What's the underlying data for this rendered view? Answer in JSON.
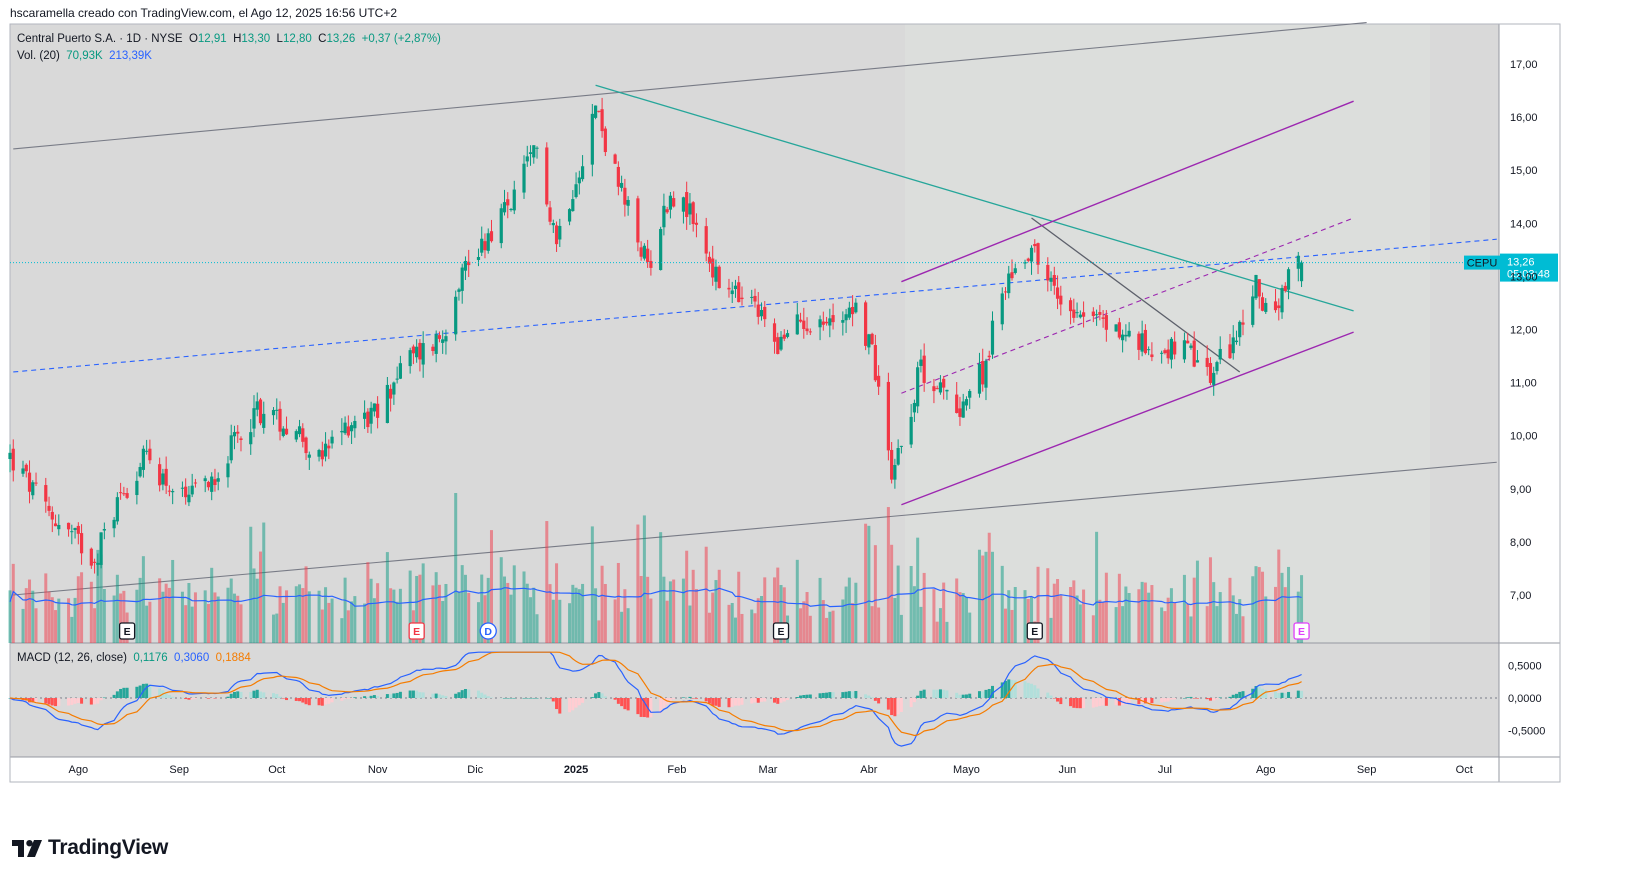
{
  "header": {
    "credit": "hscaramella creado con TradingView.com, el Ago 12, 2025 16:56 UTC+2"
  },
  "legend": {
    "symbol": "Central Puerto S.A. · 1D · NYSE",
    "open_label": "O",
    "open": "12,91",
    "high_label": "H",
    "high": "13,30",
    "low_label": "L",
    "low": "12,80",
    "close_label": "C",
    "close": "13,26",
    "change": "+0,37 (+2,87%)",
    "vol_label": "Vol. (20)",
    "vol_value": "70,93K",
    "vol_ma": "213,39K",
    "macd_label": "MACD (12, 26, close)",
    "macd_hist": "0,1176",
    "macd_line": "0,3060",
    "macd_signal": "0,1884"
  },
  "price_tag": {
    "ticker": "CEPU",
    "price": "13,26",
    "countdown": "05:03:48"
  },
  "brand": {
    "name": "TradingView"
  },
  "colors": {
    "up": "#089981",
    "down": "#f23645",
    "background": "#d8d8d8",
    "macd_line": "#2962ff",
    "signal_line": "#f57c00",
    "channel": "#9c27b0",
    "trendline_teal": "#26a69a",
    "tag_bg": "#00bcd4"
  },
  "chart_data": {
    "type": "candlestick",
    "x_labels": [
      "Ago",
      "Sep",
      "Oct",
      "Nov",
      "Dic",
      "2025",
      "Feb",
      "Mar",
      "Abr",
      "Mayo",
      "Jun",
      "Jul",
      "Ago",
      "Sep",
      "Oct"
    ],
    "price_axis": {
      "ticks": [
        "17,00",
        "16,00",
        "15,00",
        "14,00",
        "13,00",
        "12,00",
        "11,00",
        "10,00",
        "9,00",
        "8,00",
        "7,00"
      ],
      "range": [
        6.2,
        17.6
      ]
    },
    "macd_axis": {
      "ticks": [
        "0,5000",
        "0,0000",
        "-0,5000"
      ],
      "range": [
        -0.85,
        0.7
      ]
    },
    "close_path": [
      {
        "d": "2024-07-11",
        "c": 9.6
      },
      {
        "d": "2024-07-22",
        "c": 8.6
      },
      {
        "d": "2024-08-01",
        "c": 8.0
      },
      {
        "d": "2024-08-06",
        "c": 7.7
      },
      {
        "d": "2024-08-14",
        "c": 8.9
      },
      {
        "d": "2024-08-22",
        "c": 9.6
      },
      {
        "d": "2024-09-03",
        "c": 8.7
      },
      {
        "d": "2024-09-12",
        "c": 9.3
      },
      {
        "d": "2024-09-25",
        "c": 10.5
      },
      {
        "d": "2024-10-08",
        "c": 10.1
      },
      {
        "d": "2024-10-14",
        "c": 9.5
      },
      {
        "d": "2024-10-24",
        "c": 10.3
      },
      {
        "d": "2024-11-01",
        "c": 10.4
      },
      {
        "d": "2024-11-08",
        "c": 11.3
      },
      {
        "d": "2024-11-21",
        "c": 11.9
      },
      {
        "d": "2024-11-26",
        "c": 13.0
      },
      {
        "d": "2024-12-05",
        "c": 13.8
      },
      {
        "d": "2024-12-12",
        "c": 14.4
      },
      {
        "d": "2024-12-20",
        "c": 15.4
      },
      {
        "d": "2024-12-26",
        "c": 13.7
      },
      {
        "d": "2025-01-03",
        "c": 15.3
      },
      {
        "d": "2025-01-07",
        "c": 16.2
      },
      {
        "d": "2025-01-14",
        "c": 14.7
      },
      {
        "d": "2025-01-23",
        "c": 13.2
      },
      {
        "d": "2025-01-30",
        "c": 14.6
      },
      {
        "d": "2025-02-06",
        "c": 14.1
      },
      {
        "d": "2025-02-14",
        "c": 12.8
      },
      {
        "d": "2025-02-25",
        "c": 12.4
      },
      {
        "d": "2025-03-05",
        "c": 11.7
      },
      {
        "d": "2025-03-11",
        "c": 12.2
      },
      {
        "d": "2025-03-20",
        "c": 12.1
      },
      {
        "d": "2025-03-27",
        "c": 12.5
      },
      {
        "d": "2025-04-02",
        "c": 11.6
      },
      {
        "d": "2025-04-08",
        "c": 9.4
      },
      {
        "d": "2025-04-11",
        "c": 9.9
      },
      {
        "d": "2025-04-17",
        "c": 11.3
      },
      {
        "d": "2025-04-28",
        "c": 10.5
      },
      {
        "d": "2025-05-06",
        "c": 11.2
      },
      {
        "d": "2025-05-13",
        "c": 12.9
      },
      {
        "d": "2025-05-21",
        "c": 13.6
      },
      {
        "d": "2025-05-29",
        "c": 12.6
      },
      {
        "d": "2025-06-05",
        "c": 12.4
      },
      {
        "d": "2025-06-13",
        "c": 12.1
      },
      {
        "d": "2025-06-24",
        "c": 11.7
      },
      {
        "d": "2025-07-07",
        "c": 11.6
      },
      {
        "d": "2025-07-15",
        "c": 11.1
      },
      {
        "d": "2025-07-24",
        "c": 12.0
      },
      {
        "d": "2025-07-29",
        "c": 12.8
      },
      {
        "d": "2025-08-04",
        "c": 12.2
      },
      {
        "d": "2025-08-08",
        "c": 12.9
      },
      {
        "d": "2025-08-12",
        "c": 13.26
      }
    ],
    "last_candle": {
      "d": "2025-08-12",
      "o": 12.91,
      "h": 13.3,
      "l": 12.8,
      "c": 13.26
    },
    "volume_last": "70,93K",
    "volume_ma": "213,39K",
    "macd_last": {
      "hist": 0.1176,
      "macd": 0.306,
      "signal": 0.1884
    },
    "earnings_markers": [
      {
        "d": "2024-08-16",
        "label": "E"
      },
      {
        "d": "2024-11-13",
        "label": "E"
      },
      {
        "d": "2024-12-05",
        "label": "D"
      },
      {
        "d": "2025-03-05",
        "label": "E"
      },
      {
        "d": "2025-05-22",
        "label": "E"
      },
      {
        "d": "2025-08-12",
        "label": "E"
      }
    ],
    "drawings": [
      {
        "kind": "channel-line",
        "from": {
          "d": "2024-07-12",
          "p": 15.4
        },
        "to": {
          "d": "2025-09-01",
          "p": 17.78
        }
      },
      {
        "kind": "channel-line",
        "from": {
          "d": "2024-07-12",
          "p": 7.0
        },
        "to": {
          "d": "2025-10-11",
          "p": 9.5
        }
      },
      {
        "kind": "dashed-line",
        "from": {
          "d": "2024-07-12",
          "p": 11.2
        },
        "to": {
          "d": "2025-10-11",
          "p": 13.7
        }
      },
      {
        "kind": "trendline",
        "from": {
          "d": "2025-01-07",
          "p": 16.6
        },
        "to": {
          "d": "2025-08-28",
          "p": 12.35
        }
      },
      {
        "kind": "trendline",
        "from": {
          "d": "2025-05-21",
          "p": 14.1
        },
        "to": {
          "d": "2025-07-24",
          "p": 11.2
        }
      },
      {
        "kind": "channel-upper",
        "from": {
          "d": "2025-04-11",
          "p": 12.9
        },
        "to": {
          "d": "2025-08-28",
          "p": 16.3
        }
      },
      {
        "kind": "channel-lower",
        "from": {
          "d": "2025-04-11",
          "p": 8.7
        },
        "to": {
          "d": "2025-08-28",
          "p": 11.95
        }
      },
      {
        "kind": "channel-mid",
        "from": {
          "d": "2025-04-11",
          "p": 10.8
        },
        "to": {
          "d": "2025-08-28",
          "p": 14.1
        }
      }
    ]
  }
}
